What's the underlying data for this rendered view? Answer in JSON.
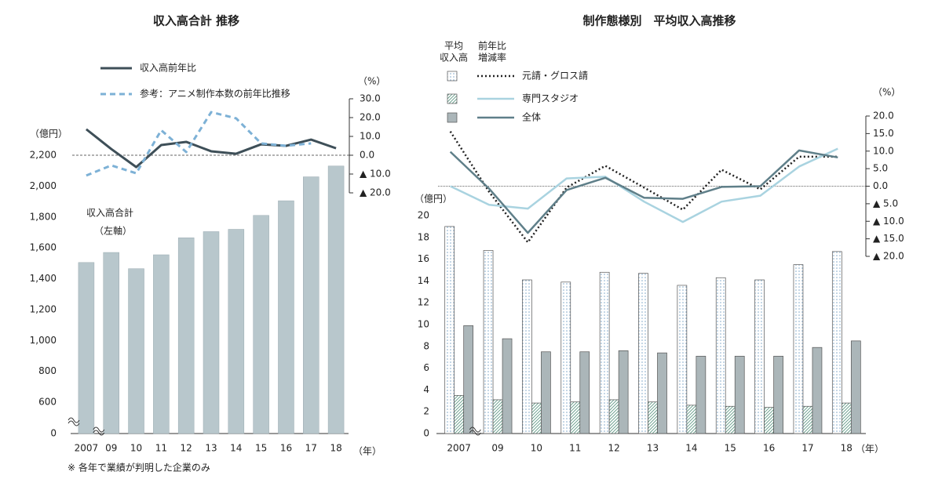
{
  "chart_data": [
    {
      "type": "bar_line",
      "title": "収入高合計 推移",
      "y_label": "（億円）",
      "y2_label": "（%）",
      "x_label": "（年）",
      "categories": [
        "2007",
        "09",
        "10",
        "11",
        "12",
        "13",
        "14",
        "15",
        "16",
        "17",
        "18"
      ],
      "ylim": [
        0,
        2200
      ],
      "ybreak": [
        0,
        600
      ],
      "yticks": [
        0,
        600,
        800,
        {
          "value": 1000,
          "label": "1,000"
        },
        {
          "value": 1200,
          "label": "1,200"
        },
        {
          "value": 1400,
          "label": "1,400"
        },
        {
          "value": 1600,
          "label": "1,600"
        },
        {
          "value": 1800,
          "label": "1,800"
        },
        {
          "value": 2000,
          "label": "2,000"
        },
        {
          "value": 2200,
          "label": "2,200"
        }
      ],
      "y2lim": [
        -20,
        30
      ],
      "y2ticks": [
        {
          "value": 30,
          "label": "30.0"
        },
        {
          "value": 20,
          "label": "20.0"
        },
        {
          "value": 10,
          "label": "10.0"
        },
        {
          "value": 0,
          "label": "0.0"
        },
        {
          "value": -10,
          "label": "▲ 10.0"
        },
        {
          "value": -20,
          "label": "▲ 20.0"
        }
      ],
      "series": [
        {
          "name": "収入高合計",
          "color": "#b8c7cc",
          "values": [
            1505,
            1570,
            1465,
            1555,
            1665,
            1705,
            1720,
            1810,
            1905,
            2060,
            2130
          ]
        },
        {
          "name": "収入高前年比",
          "color": "#3e4f58",
          "style": "solid",
          "axis": "y2",
          "values": [
            13.8,
            3.3,
            -6.3,
            5.4,
            7.1,
            2.1,
            0.8,
            5.8,
            5.0,
            8.3,
            3.7
          ]
        },
        {
          "name": "参考：アニメ制作本数の前年比推移",
          "color": "#7db1d6",
          "style": "dashed",
          "axis": "y2",
          "values": [
            -10.8,
            -5.4,
            -9.6,
            13.3,
            1.7,
            22.9,
            19.6,
            6.3,
            5.0,
            6.3,
            null
          ]
        }
      ],
      "annotation": "（左軸）",
      "footnote": "※ 各年で業績が判明した企業のみ"
    },
    {
      "type": "grouped_bar_line",
      "title": "制作態様別　平均収入高推移",
      "y_label": "（億円）",
      "y2_label": "（%）",
      "x_label": "（年）",
      "legend_headers": [
        [
          "平均",
          "収入高"
        ],
        [
          "前年比",
          "増減率"
        ]
      ],
      "categories": [
        "2007",
        "09",
        "10",
        "11",
        "12",
        "13",
        "14",
        "15",
        "16",
        "17",
        "18"
      ],
      "ylim": [
        0,
        20
      ],
      "yticks": [
        0,
        2,
        4,
        6,
        8,
        10,
        12,
        14,
        16,
        18,
        20
      ],
      "y2lim": [
        -20,
        20
      ],
      "y2ticks": [
        {
          "value": 20,
          "label": "20.0"
        },
        {
          "value": 15,
          "label": "15.0"
        },
        {
          "value": 10,
          "label": "10.0"
        },
        {
          "value": 5,
          "label": "5.0"
        },
        {
          "value": 0,
          "label": "0.0"
        },
        {
          "value": -5,
          "label": "▲ 5.0"
        },
        {
          "value": -10,
          "label": "▲ 10.0"
        },
        {
          "value": -15,
          "label": "▲ 15.0"
        },
        {
          "value": -20,
          "label": "▲ 20.0"
        }
      ],
      "series": [
        {
          "name": "元請・グロス請",
          "color": "#7fa7c9",
          "pattern": "dots",
          "values": [
            19.0,
            16.8,
            14.1,
            13.9,
            14.8,
            14.7,
            13.6,
            14.3,
            14.1,
            15.5,
            16.7
          ],
          "line_color": "#222222",
          "line_style": "dotted",
          "line_values": [
            15.6,
            -1.6,
            -16.0,
            -0.4,
            5.8,
            -0.4,
            -6.7,
            4.7,
            -0.9,
            8.4,
            8.4
          ]
        },
        {
          "name": "専門スタジオ",
          "color": "#5f9a86",
          "pattern": "hatch",
          "values": [
            3.5,
            3.1,
            2.8,
            2.9,
            3.1,
            2.9,
            2.6,
            2.5,
            2.4,
            2.5,
            2.8
          ],
          "line_color": "#a9d3e0",
          "line_style": "solid",
          "line_values": [
            0,
            -5.3,
            -6.4,
            2.2,
            2.7,
            -4.4,
            -10.2,
            -4.4,
            -2.7,
            5.6,
            10.7
          ]
        },
        {
          "name": "全体",
          "color": "#abb6b9",
          "pattern": "solid",
          "values": [
            9.9,
            8.7,
            7.5,
            7.5,
            7.6,
            7.4,
            7.1,
            7.1,
            7.1,
            7.9,
            8.5
          ],
          "line_color": "#5f7f89",
          "line_style": "solid",
          "line_values": [
            9.8,
            -0.7,
            -13.3,
            -1.1,
            2.4,
            -3.3,
            -3.6,
            -0.2,
            0,
            10.2,
            8.2
          ]
        }
      ]
    }
  ]
}
